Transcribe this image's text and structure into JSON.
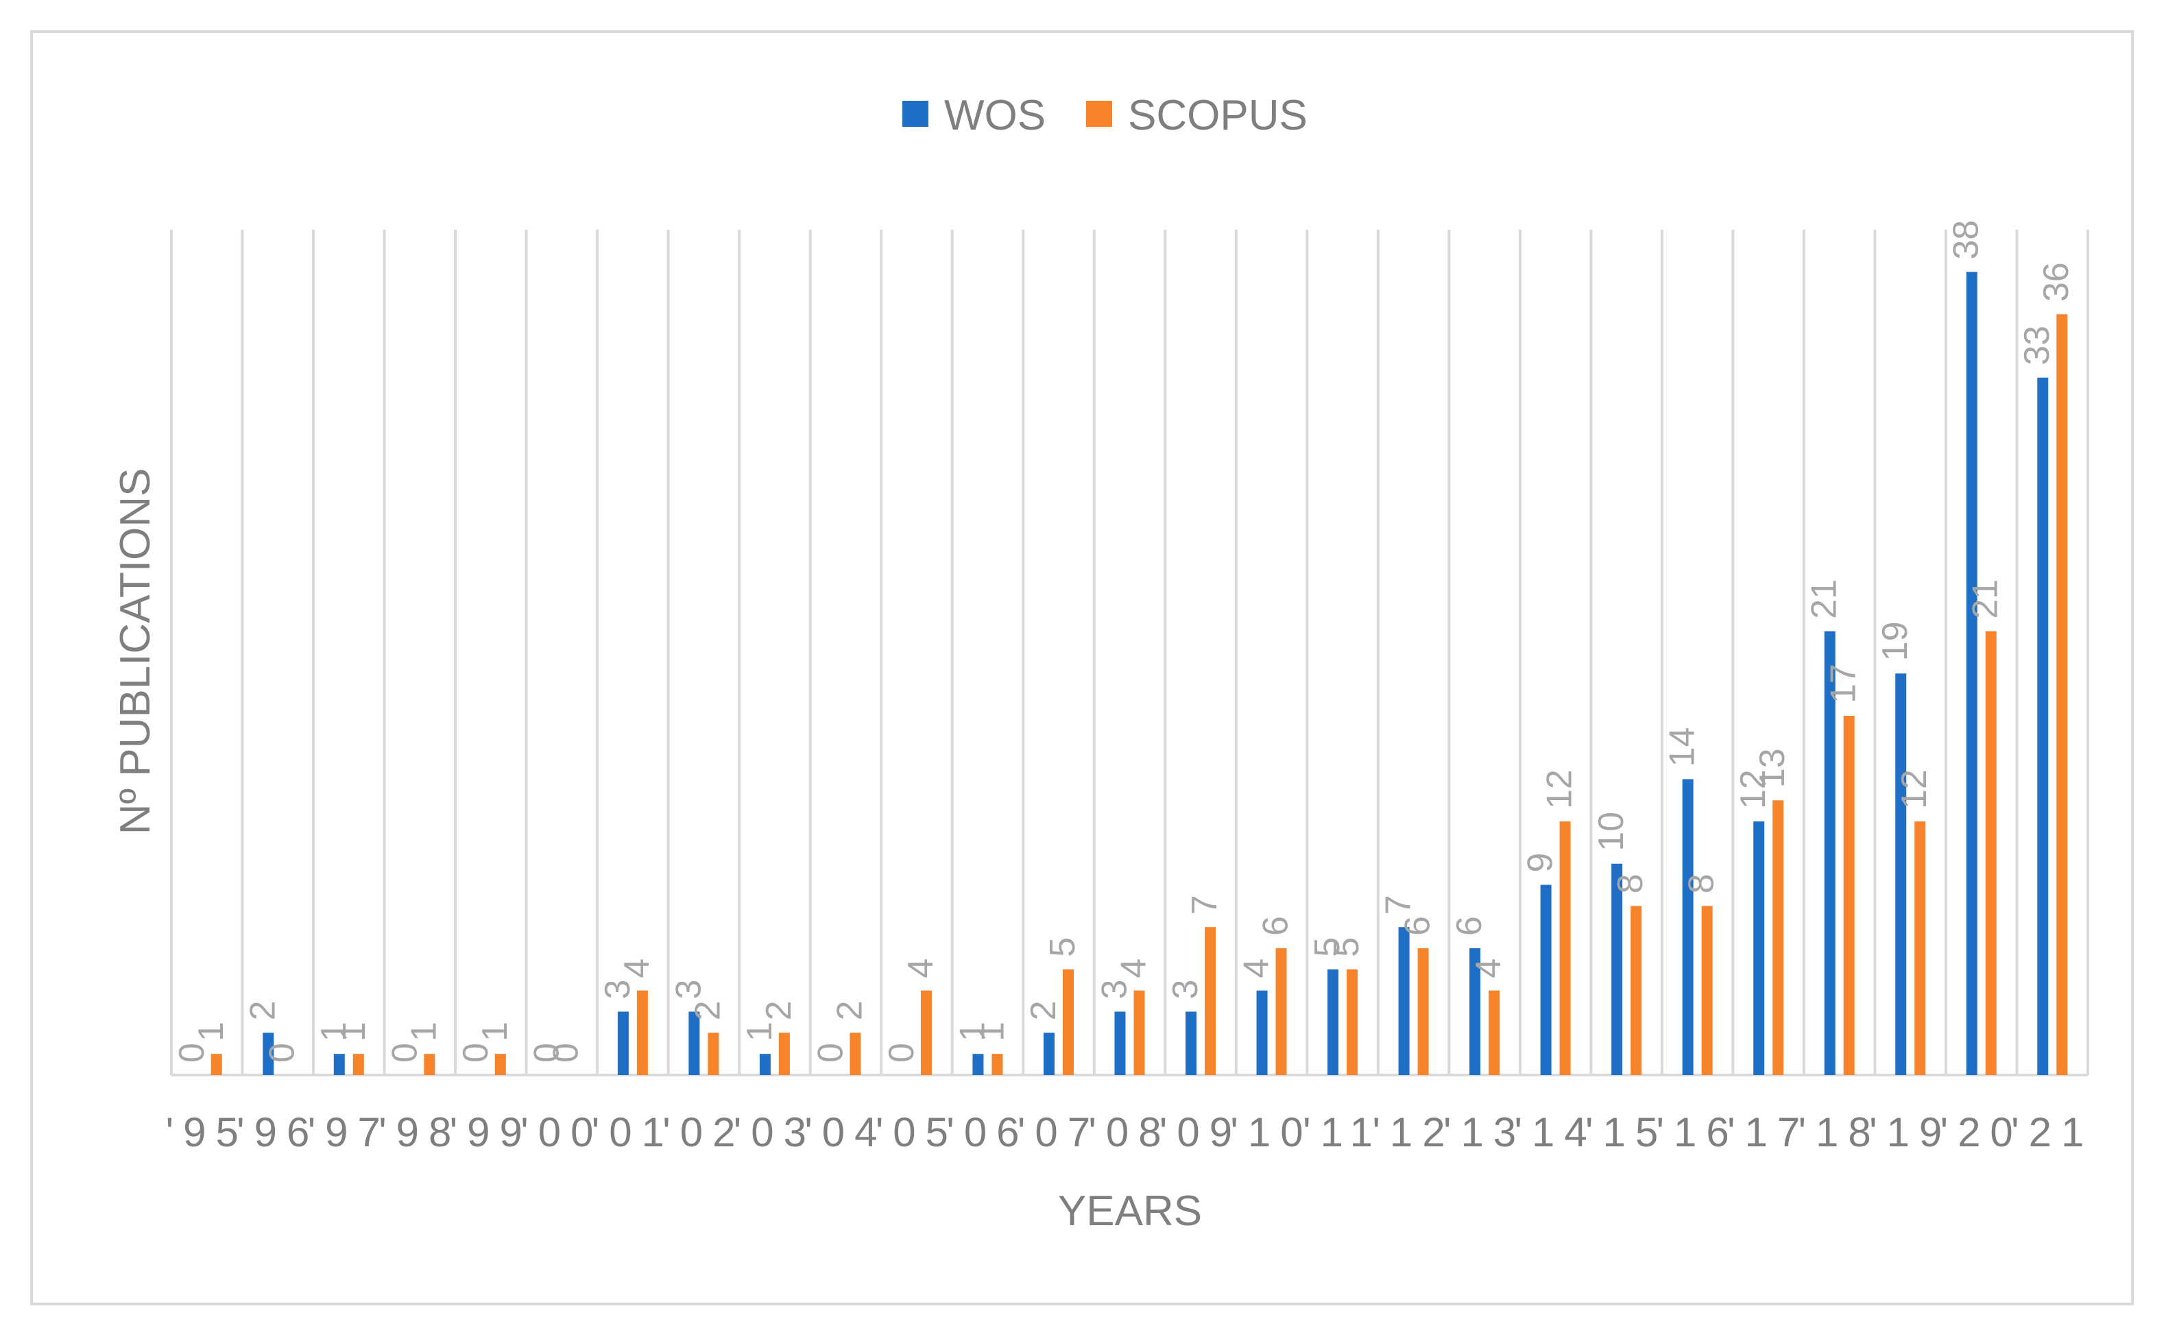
{
  "chart_data": {
    "type": "bar",
    "categories": [
      "'95",
      "'96",
      "'97",
      "'98",
      "'99",
      "'00",
      "'01",
      "'02",
      "'03",
      "'04",
      "'05",
      "'06",
      "'07",
      "'08",
      "'09",
      "'10",
      "'11",
      "'12",
      "'13",
      "'14",
      "'15",
      "'16",
      "'17",
      "'18",
      "'19",
      "'20",
      "'21"
    ],
    "series": [
      {
        "name": "WOS",
        "color": "#1f6fc6",
        "values": [
          0,
          2,
          1,
          0,
          0,
          0,
          3,
          3,
          1,
          0,
          0,
          1,
          2,
          3,
          3,
          4,
          5,
          7,
          6,
          9,
          10,
          14,
          12,
          21,
          19,
          38,
          33
        ]
      },
      {
        "name": "SCOPUS",
        "color": "#f7842a",
        "values": [
          1,
          0,
          1,
          1,
          1,
          0,
          4,
          2,
          2,
          2,
          4,
          1,
          5,
          4,
          7,
          6,
          5,
          6,
          4,
          12,
          8,
          8,
          13,
          17,
          12,
          21,
          36
        ]
      }
    ],
    "xlabel": "YEARS",
    "ylabel": "Nº PUBLICATIONS",
    "ylim": [
      0,
      40
    ],
    "grid": "vertical",
    "legend": "top-center"
  }
}
